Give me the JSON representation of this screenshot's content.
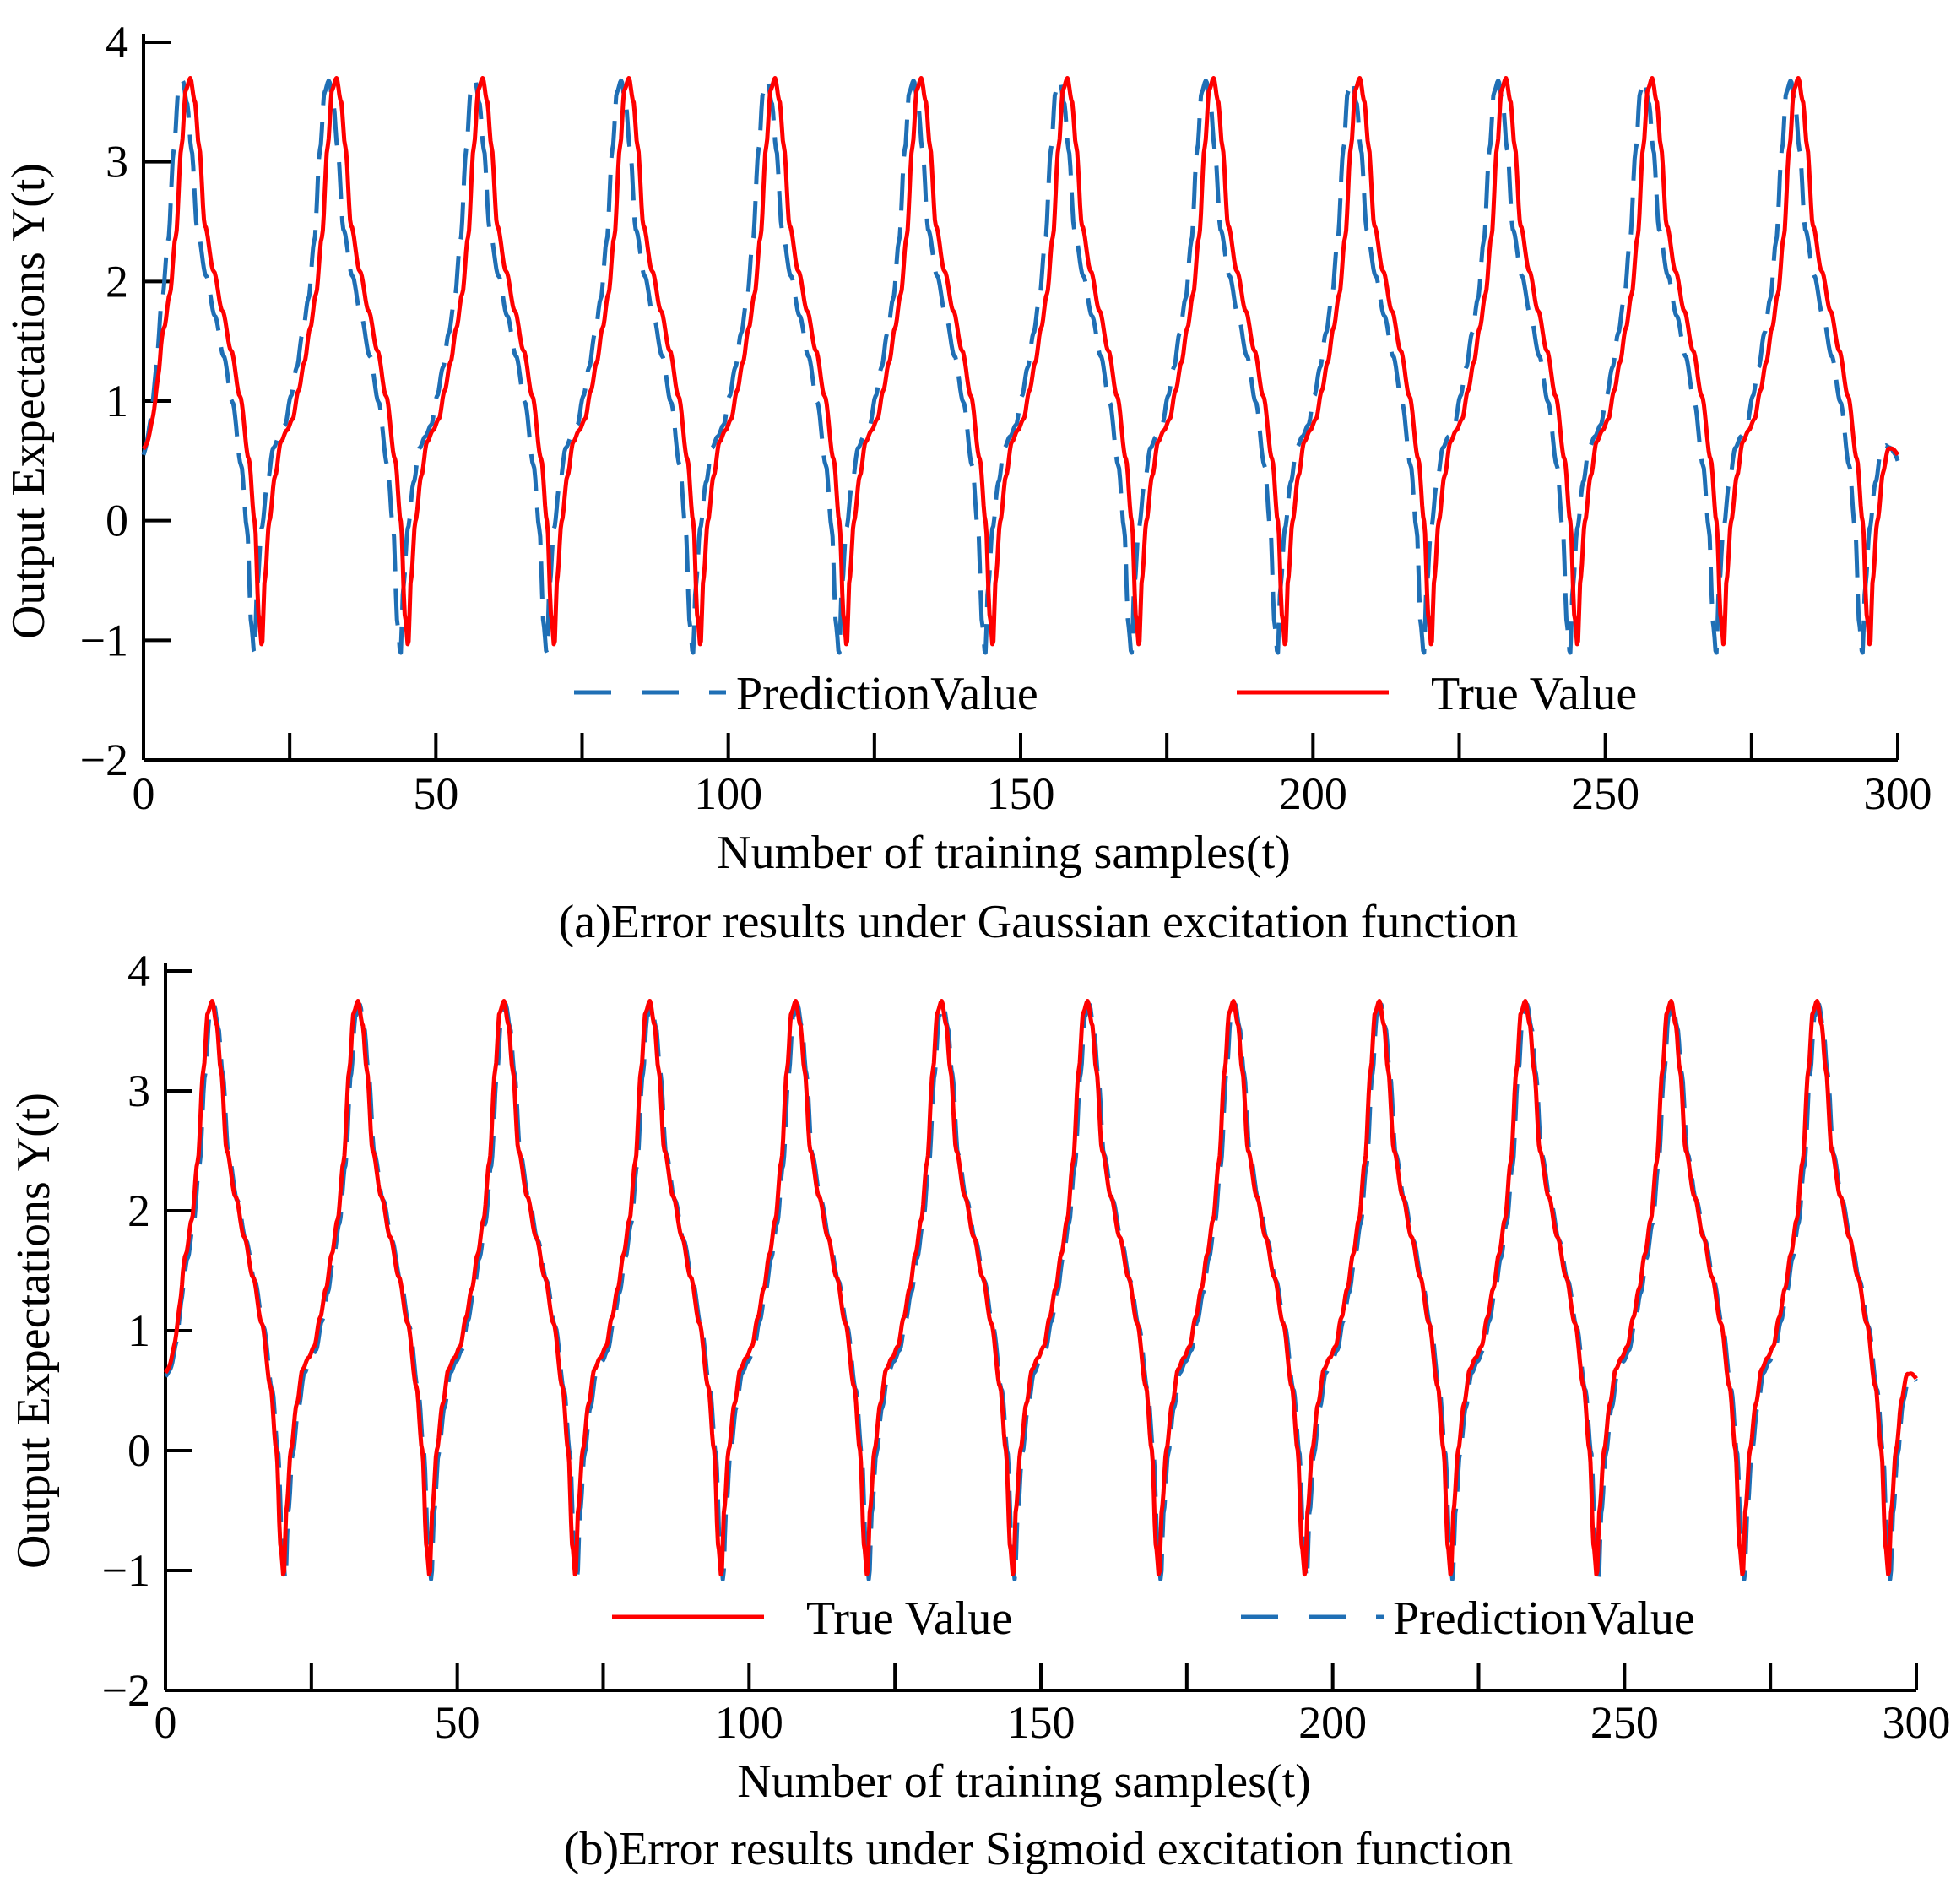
{
  "chart_data": [
    {
      "type": "line",
      "caption": "(a)Error results under Gaussian excitation function",
      "xlabel": "Number of training samples(t)",
      "ylabel": "Output Expectations Y(t)",
      "xlim": [
        0,
        300
      ],
      "ylim": [
        -2,
        4
      ],
      "xticks": [
        0,
        50,
        100,
        150,
        200,
        250,
        300
      ],
      "xtick_labels": [
        "0",
        "50",
        "100",
        "150",
        "200",
        "250",
        "300"
      ],
      "yticks": [
        -2,
        -1,
        0,
        1,
        2,
        3,
        4
      ],
      "ytick_labels": [
        "−2",
        "−1",
        "0",
        "1",
        "2",
        "3",
        "4"
      ],
      "grid": false,
      "period": 25,
      "legend": [
        {
          "name": "PredictionValue",
          "color": "#1f6fb5",
          "dash": "long-dash"
        },
        {
          "name": "True Value",
          "color": "#ff0000",
          "dash": "solid"
        }
      ],
      "series": [
        {
          "name": "True Value",
          "color": "#ff0000",
          "style": "solid",
          "peak": 3.7,
          "trough": -1.05,
          "x_offset": 0,
          "start_y": 0.6,
          "end_y": 0.55
        },
        {
          "name": "PredictionValue",
          "color": "#1f6fb5",
          "style": "dashed",
          "peak": 3.68,
          "trough": -1.12,
          "x_offset": -1.3,
          "start_y": 0.55,
          "end_y": 0.5
        }
      ]
    },
    {
      "type": "line",
      "caption": "(b)Error results under Sigmoid excitation function",
      "xlabel": "Number of training samples(t)",
      "ylabel": "Output Expectations Y(t)",
      "xlim": [
        0,
        300
      ],
      "ylim": [
        -2,
        4
      ],
      "xticks": [
        0,
        50,
        100,
        150,
        200,
        250,
        300
      ],
      "xtick_labels": [
        "0",
        "50",
        "100",
        "150",
        "200",
        "250",
        "300"
      ],
      "yticks": [
        -2,
        -1,
        0,
        1,
        2,
        3,
        4
      ],
      "ytick_labels": [
        "−2",
        "−1",
        "0",
        "1",
        "2",
        "3",
        "4"
      ],
      "grid": false,
      "period": 25,
      "legend": [
        {
          "name": "True Value",
          "color": "#ff0000",
          "dash": "solid"
        },
        {
          "name": "PredictionValue",
          "color": "#1f6fb5",
          "dash": "long-dash"
        }
      ],
      "series": [
        {
          "name": "True Value",
          "color": "#ff0000",
          "style": "solid",
          "peak": 3.75,
          "trough": -1.05,
          "x_offset": 0,
          "start_y": 0.65,
          "end_y": 0.6
        },
        {
          "name": "PredictionValue",
          "color": "#1f6fb5",
          "style": "dashed",
          "peak": 3.72,
          "trough": -1.08,
          "x_offset": 0.3,
          "start_y": 0.62,
          "end_y": 0.58
        }
      ]
    }
  ]
}
